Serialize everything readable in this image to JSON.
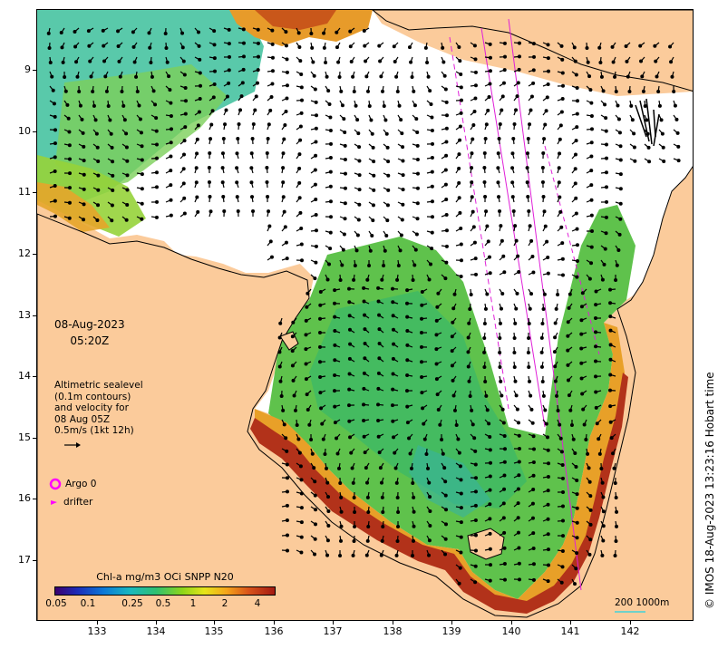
{
  "map": {
    "date": "08-Aug-2023",
    "time": "05:20Z",
    "altimetry_lines": [
      "Altimetric sealevel",
      "(0.1m contours)",
      "and velocity for",
      "08 Aug 05Z",
      "0.5m/s (1kt 12h)"
    ],
    "x_ticks": [
      "133",
      "134",
      "135",
      "136",
      "137",
      "138",
      "139",
      "140",
      "141",
      "142"
    ],
    "y_ticks": [
      "9",
      "10",
      "11",
      "12",
      "13",
      "14",
      "15",
      "16",
      "17"
    ],
    "legend": {
      "argo_label": "Argo 0",
      "drifter_label": "drifter"
    },
    "colorbar": {
      "title": "Chl-a mg/m3 OCi SNPP N20",
      "ticks": [
        "0.05",
        "0.1",
        "0.25",
        "0.5",
        "1",
        "2",
        "4"
      ]
    },
    "scale_label": "200  1000m",
    "credit": "© IMOS 18-Aug-2023 13:23:16 Hobart time",
    "colors": {
      "land": "#fbcb9b",
      "argo": "#ff00ff",
      "drifter": "#ff00ff",
      "scale": "#6fd1c9"
    }
  }
}
